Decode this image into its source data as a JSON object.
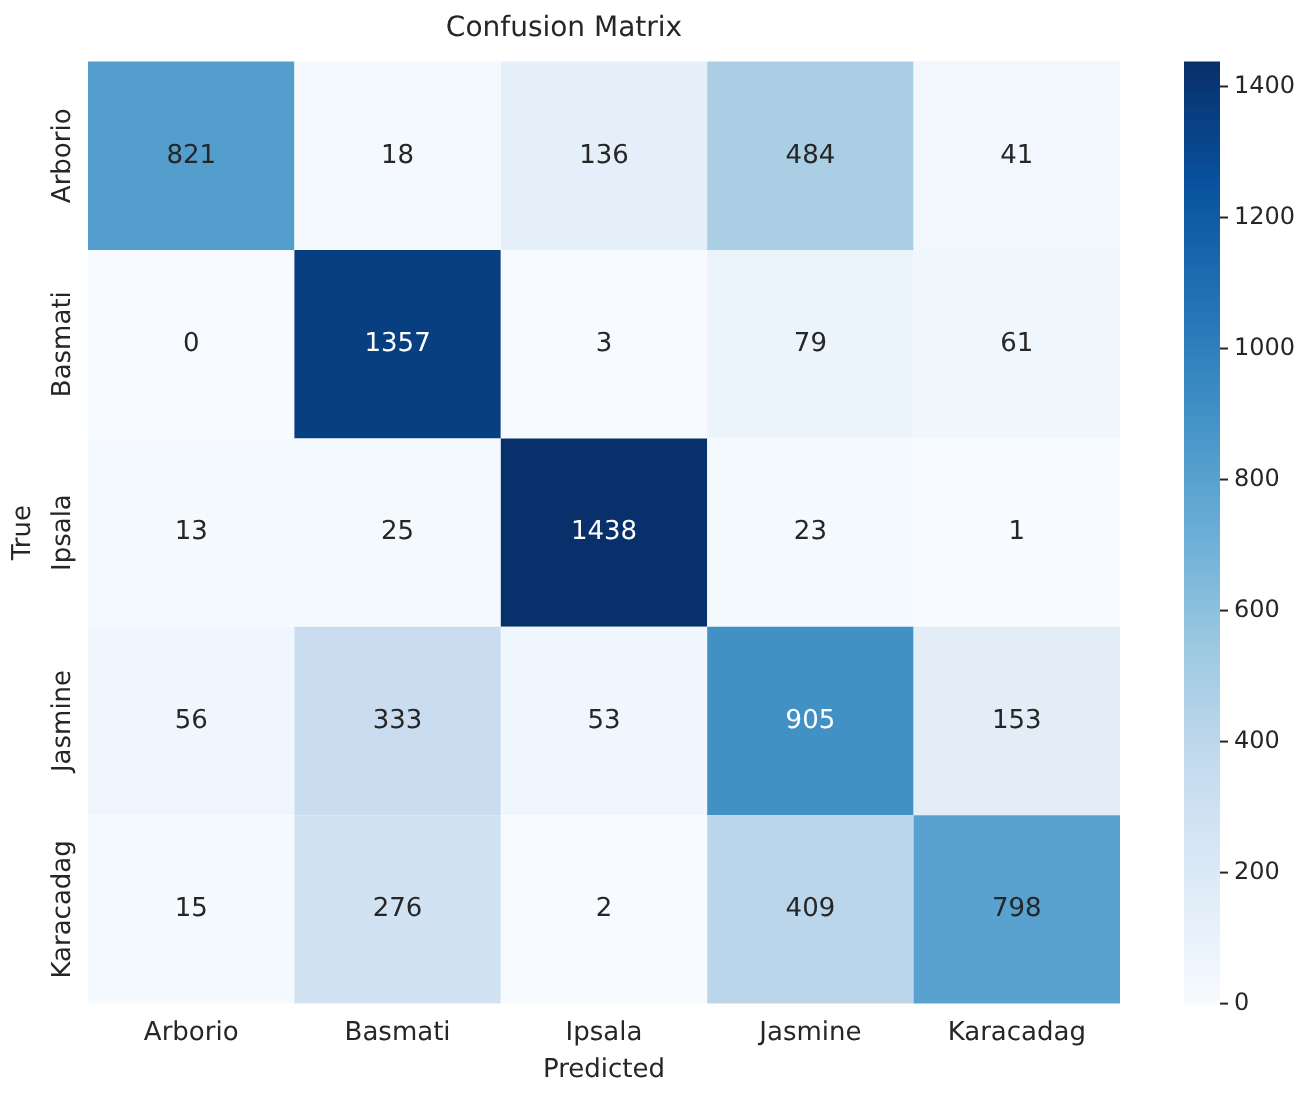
{
  "chart_data": {
    "type": "heatmap",
    "title": "Confusion Matrix",
    "xlabel": "Predicted",
    "ylabel": "True",
    "categories": [
      "Arborio",
      "Basmati",
      "Ipsala",
      "Jasmine",
      "Karacadag"
    ],
    "y_categories": [
      "Arborio",
      "Basmati",
      "Ipsala",
      "Jasmine",
      "Karacadag"
    ],
    "cells": [
      [
        821,
        18,
        136,
        484,
        41
      ],
      [
        0,
        1357,
        3,
        79,
        61
      ],
      [
        13,
        25,
        1438,
        23,
        1
      ],
      [
        56,
        333,
        53,
        905,
        153
      ],
      [
        15,
        276,
        2,
        409,
        798
      ]
    ],
    "data_labels": true,
    "clim": [
      0,
      1438
    ],
    "cticks": [
      0,
      200,
      400,
      600,
      800,
      1000,
      1200,
      1400
    ]
  }
}
